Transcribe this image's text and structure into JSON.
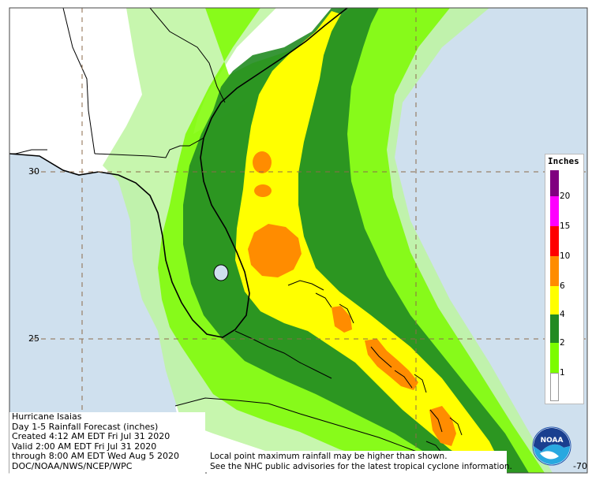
{
  "title_block": {
    "line1": "Hurricane Isaias",
    "line2": "Day 1-5 Rainfall Forecast (inches)",
    "line3": "Created 4:12 AM EDT Fri Jul 31 2020",
    "line4": "Valid 2:00 AM EDT Fri Jul 31 2020",
    "line5": "through 8:00 AM EDT Wed Aug 5 2020",
    "line6": "DOC/NOAA/NWS/NCEP/WPC"
  },
  "disclaimer": {
    "line1": "Local point maximum rainfall may be higher than shown.",
    "line2": "See the NHC public advisories for the latest tropical cyclone information."
  },
  "legend": {
    "title": "Inches",
    "levels": [
      {
        "label": "20",
        "color": "#800080"
      },
      {
        "label": "15",
        "color": "#ff00ff"
      },
      {
        "label": "10",
        "color": "#ff0000"
      },
      {
        "label": "6",
        "color": "#ff8c00"
      },
      {
        "label": "4",
        "color": "#ffff00"
      },
      {
        "label": "2",
        "color": "#228b22"
      },
      {
        "label": "1",
        "color": "#7cfc00"
      },
      {
        "label": "",
        "color": "#ffffff"
      }
    ],
    "extra_bands": [
      "#bdf5a0"
    ]
  },
  "grid_labels": {
    "lat_30": "30",
    "lat_25": "25",
    "lon_70": "-70"
  },
  "colors": {
    "ocean": "#cfe0ee",
    "land": "#ffffff",
    "border": "#000000",
    "grid": "#8b6a4a"
  },
  "logo": {
    "text": "NOAA"
  }
}
